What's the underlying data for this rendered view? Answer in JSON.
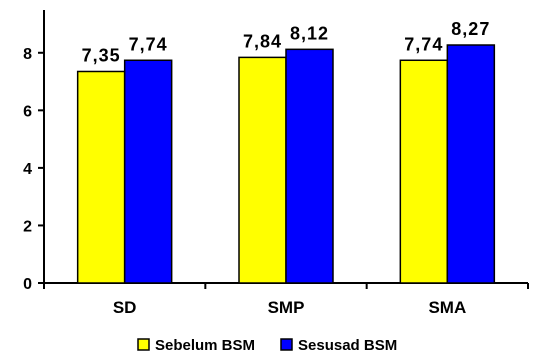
{
  "chart_data": {
    "type": "bar",
    "categories": [
      "SD",
      "SMP",
      "SMA"
    ],
    "series": [
      {
        "name": "Sebelum BSM",
        "values": [
          7.35,
          7.84,
          7.74
        ],
        "value_labels": [
          "7,35",
          "7,84",
          "7,74"
        ],
        "color": "#FFFF00"
      },
      {
        "name": "Sesusad BSM",
        "values": [
          7.74,
          8.12,
          8.27
        ],
        "value_labels": [
          "7,74",
          "8,12",
          "8,27"
        ],
        "color": "#0000FF"
      }
    ],
    "title": "",
    "xlabel": "",
    "ylabel": "",
    "ylim": [
      0,
      9
    ],
    "yticks": [
      0,
      2,
      4,
      6,
      8
    ],
    "grid": false,
    "legend_position": "bottom"
  }
}
